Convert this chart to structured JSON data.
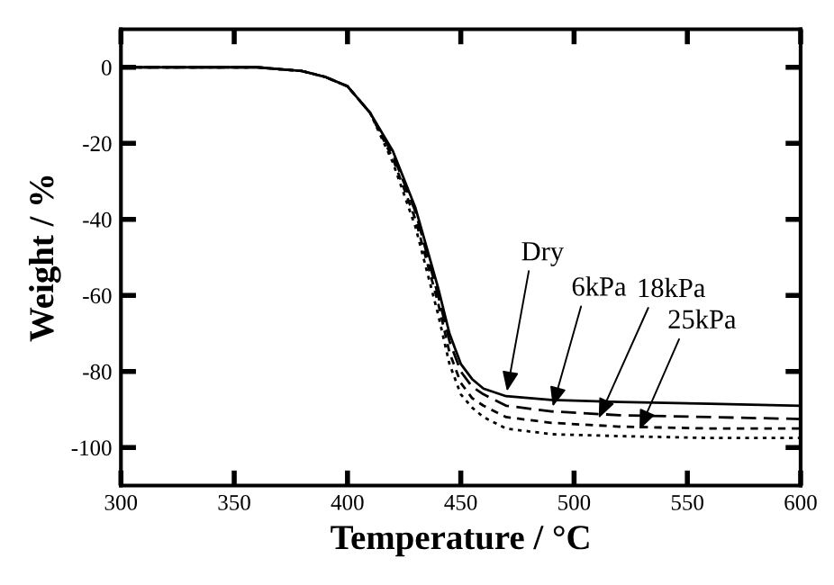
{
  "chart_data": {
    "type": "line",
    "xlabel": "Temperature / °C",
    "ylabel": "Weight / %",
    "xlim": [
      300,
      600
    ],
    "ylim": [
      -110,
      10
    ],
    "xticks": [
      300,
      350,
      400,
      450,
      500,
      550,
      600
    ],
    "yticks": [
      0,
      -20,
      -40,
      -60,
      -80,
      -100
    ],
    "grid": false,
    "legend": false,
    "series": [
      {
        "color": "#000000",
        "line_style": "solid",
        "x": [
          300,
          360,
          370,
          380,
          390,
          400,
          410,
          420,
          430,
          440,
          445,
          450,
          455,
          460,
          470,
          490,
          520,
          560,
          600
        ],
        "values": [
          0,
          0,
          -0.5,
          -1,
          -2.5,
          -5,
          -12,
          -22,
          -37,
          -58,
          -70,
          -78,
          -82,
          -84.5,
          -86.5,
          -87.5,
          -88,
          -88.5,
          -89
        ]
      },
      {
        "color": "#000000",
        "line_style": "dashed",
        "x": [
          300,
          360,
          370,
          380,
          390,
          400,
          410,
          420,
          430,
          440,
          445,
          450,
          455,
          460,
          470,
          490,
          520,
          560,
          600
        ],
        "values": [
          0,
          0,
          -0.5,
          -1,
          -2.5,
          -5,
          -12,
          -23,
          -38,
          -60,
          -72,
          -80,
          -84,
          -86,
          -89,
          -90.5,
          -91.5,
          -92,
          -92.5
        ]
      },
      {
        "color": "#000000",
        "line_style": "dashed",
        "x": [
          300,
          360,
          370,
          380,
          390,
          400,
          410,
          420,
          430,
          440,
          445,
          450,
          455,
          460,
          470,
          490,
          520,
          560,
          600
        ],
        "values": [
          0,
          0,
          -0.5,
          -1,
          -2.5,
          -5,
          -12,
          -24,
          -40,
          -62,
          -75,
          -83,
          -87,
          -89,
          -92,
          -93.5,
          -94.5,
          -95,
          -95
        ]
      },
      {
        "color": "#000000",
        "line_style": "dotted",
        "x": [
          300,
          360,
          370,
          380,
          390,
          400,
          410,
          420,
          430,
          440,
          445,
          450,
          455,
          460,
          470,
          490,
          520,
          560,
          600
        ],
        "values": [
          0,
          0,
          -0.5,
          -1,
          -2.5,
          -5,
          -12,
          -25,
          -42,
          -65,
          -78,
          -86,
          -89.5,
          -92,
          -95,
          -96.5,
          -97,
          -97.5,
          -97.5
        ]
      }
    ],
    "annotations": [
      {
        "text": "Dry",
        "x": 470,
        "y": -86.5
      },
      {
        "text": "6kPa",
        "x": 490,
        "y": -90.5
      },
      {
        "text": "18kPa",
        "x": 510,
        "y": -93.5
      },
      {
        "text": "25kPa",
        "x": 528,
        "y": -96.5
      }
    ]
  }
}
